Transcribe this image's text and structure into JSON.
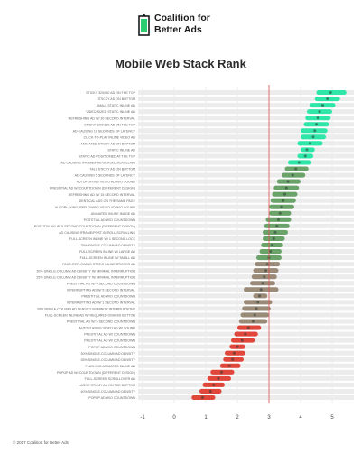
{
  "header": {
    "logo_line1": "Coalition for",
    "logo_line2": "Better Ads",
    "logo_mark": "coalition-logo-icon",
    "brand_color": "#2ecc71"
  },
  "footer": {
    "text": "© 2017 Coalition for Better Ads"
  },
  "chart_data": {
    "type": "dot-range",
    "title": "Mobile Web Stack Rank",
    "xlabel": "",
    "ylabel": "",
    "xlim": [
      -1,
      5.5
    ],
    "xticks": [
      "-1",
      "0",
      "1",
      "2",
      "3",
      "4",
      "5"
    ],
    "reference_line": 3,
    "colors": {
      "good": "#2ee6a8",
      "mid": "#6aa36a",
      "neutral": "#9a8a78",
      "bad": "#e0463a",
      "reference": "#e05050"
    },
    "rows": [
      {
        "label": "STICKY 320X50 AD ON THE TOP",
        "value": 4.95,
        "lo": 4.5,
        "hi": 5.45
      },
      {
        "label": "STICKY AD ON BOTTOM",
        "value": 4.85,
        "lo": 4.45,
        "hi": 5.25
      },
      {
        "label": "SMALL STATIC INLINE AD",
        "value": 4.7,
        "lo": 4.3,
        "hi": 5.1
      },
      {
        "label": "VIDEO-SIZED STATIC INLINE AD",
        "value": 4.6,
        "lo": 4.2,
        "hi": 5.0
      },
      {
        "label": "REFRESHING AD W/ 30 SECOND INTERVAL",
        "value": 4.55,
        "lo": 4.15,
        "hi": 4.95
      },
      {
        "label": "STICKY 320X100 AD ON THE TOP",
        "value": 4.5,
        "lo": 4.1,
        "hi": 4.9
      },
      {
        "label": "AD CAUSING 10 SECONDS OF LATENCY",
        "value": 4.45,
        "lo": 4.0,
        "hi": 4.85
      },
      {
        "label": "CLICK-TO-PLAY INLINE VIDEO AD",
        "value": 4.4,
        "lo": 4.0,
        "hi": 4.8
      },
      {
        "label": "ANIMATED STICKY AD ON BOTTOM",
        "value": 4.3,
        "lo": 3.9,
        "hi": 4.7
      },
      {
        "label": "STATIC INLINE AD",
        "value": 4.2,
        "lo": 4.0,
        "hi": 4.45
      },
      {
        "label": "STATIC AD POSITIONED AT THE TOP",
        "value": 4.15,
        "lo": 3.9,
        "hi": 4.4
      },
      {
        "label": "AD CAUSING IFRAME/PRE-SCROLL SCROLLING",
        "value": 3.95,
        "lo": 3.6,
        "hi": 4.35
      },
      {
        "label": "TALL STICKY AD ON BOTTOM",
        "value": 3.85,
        "lo": 3.5,
        "hi": 4.25
      },
      {
        "label": "AD CAUSING 5 SECONDS OF LATENCY",
        "value": 3.75,
        "lo": 3.4,
        "hi": 4.15
      },
      {
        "label": "AUTOPLAYING VIDEO AD W/O SOUND",
        "value": 3.6,
        "lo": 3.25,
        "hi": 4.0
      },
      {
        "label": "PRESTITIAL AD W/ COUNTDOWN (DIFFERENT DESIGN)",
        "value": 3.55,
        "lo": 3.15,
        "hi": 3.95
      },
      {
        "label": "REFRESHING AD W/ 15 SECOND INTERVAL",
        "value": 3.5,
        "lo": 3.1,
        "hi": 3.9
      },
      {
        "label": "IDENTICAL ADS ON THE SAME PAGE",
        "value": 3.45,
        "lo": 3.05,
        "hi": 3.85
      },
      {
        "label": "AUTOPLAYING, REFLOWING VIDEO AD W/O SOUND",
        "value": 3.4,
        "lo": 3.0,
        "hi": 3.8
      },
      {
        "label": "ANIMATED INLINE IMAGE AD",
        "value": 3.35,
        "lo": 3.0,
        "hi": 3.7
      },
      {
        "label": "POSTITIAL AD W/O COUNTDOWN",
        "value": 3.3,
        "lo": 2.9,
        "hi": 3.7
      },
      {
        "label": "POSTITIAL AD W/ 5 SECOND COUNTDOWN (DIFFERENT DESIGN)",
        "value": 3.25,
        "lo": 2.85,
        "hi": 3.65
      },
      {
        "label": "AD CAUSING IFRAME/POST-SCROLL SCROLLING",
        "value": 3.2,
        "lo": 2.8,
        "hi": 3.6
      },
      {
        "label": "FULL-SCREEN INLINE W/ 1 SECOND LOCK",
        "value": 3.15,
        "lo": 2.8,
        "hi": 3.5
      },
      {
        "label": "25% SINGLE-COLUMN AD DENSITY",
        "value": 3.1,
        "lo": 2.75,
        "hi": 3.45
      },
      {
        "label": "FULL-SCREEN INLINE W/ LARGE AD",
        "value": 3.05,
        "lo": 2.7,
        "hi": 3.4
      },
      {
        "label": "FULL-SCREEN INLINE W/ SMALL AD",
        "value": 3.0,
        "lo": 2.6,
        "hi": 3.4
      },
      {
        "label": "PAGE-REFLOWING STATIC INLINE STICKER AD",
        "value": 2.95,
        "lo": 2.55,
        "hi": 3.35
      },
      {
        "label": "30% SINGLE-COLUMN AD DENSITY W/ MINIMAL INTERRUPTION",
        "value": 2.9,
        "lo": 2.5,
        "hi": 3.3
      },
      {
        "label": "25% SINGLE-COLUMN AD DENSITY W/ MINIMAL INTERRUPTION",
        "value": 2.85,
        "lo": 2.45,
        "hi": 3.25
      },
      {
        "label": "PRESTITIAL AD W/ 5 SECOND COUNTDOWN",
        "value": 2.8,
        "lo": 2.4,
        "hi": 3.2
      },
      {
        "label": "INTERRUPTING AD W/ 5 SECOND INTERVAL",
        "value": 2.75,
        "lo": 2.2,
        "hi": 3.3
      },
      {
        "label": "PRESTITIAL AD W/O COUNTDOWN",
        "value": 2.7,
        "lo": 2.5,
        "hi": 2.95
      },
      {
        "label": "INTERRUPTING AD W/ 1 SECOND INTERVAL",
        "value": 2.65,
        "lo": 2.2,
        "hi": 3.1
      },
      {
        "label": "30% SINGLE-COLUMN AD DENSITY W/ MINOR INTERRUPTIONS",
        "value": 2.6,
        "lo": 2.15,
        "hi": 3.05
      },
      {
        "label": "FULL-SCREEN INLINE AD W/ REQUIRED DISMISS BUTTON",
        "value": 2.55,
        "lo": 2.1,
        "hi": 3.0
      },
      {
        "label": "PRESTITIAL AD W/ 5 SECOND COUNTDOWN",
        "value": 2.5,
        "lo": 2.05,
        "hi": 2.95
      },
      {
        "label": "AUTOPLAYING VIDEO AD W/ SOUND",
        "value": 2.35,
        "lo": 2.0,
        "hi": 2.75
      },
      {
        "label": "PRESTITIAL AD W/ COUNTDOWN",
        "value": 2.25,
        "lo": 1.9,
        "hi": 2.65
      },
      {
        "label": "PRESTITIAL AD W/ COUNTDOWN",
        "value": 2.15,
        "lo": 1.8,
        "hi": 2.55
      },
      {
        "label": "POPUP AD W/O COUNTDOWN",
        "value": 2.0,
        "lo": 1.75,
        "hi": 2.25
      },
      {
        "label": "30% SINGLE-COLUMN AD DENSITY",
        "value": 1.9,
        "lo": 1.6,
        "hi": 2.25
      },
      {
        "label": "35% SINGLE-COLUMN AD DENSITY",
        "value": 1.85,
        "lo": 1.55,
        "hi": 2.2
      },
      {
        "label": "FLASHING ANIMATED INLINE AD",
        "value": 1.75,
        "lo": 1.45,
        "hi": 2.1
      },
      {
        "label": "POPUP AD W/ COUNTDOWN (DIFFERENT DESIGN)",
        "value": 1.5,
        "lo": 1.15,
        "hi": 1.9
      },
      {
        "label": "FULL-SCREEN SCROLLOVER AD",
        "value": 1.4,
        "lo": 1.05,
        "hi": 1.8
      },
      {
        "label": "LARGE STICKY AD ON THE BOTTOM",
        "value": 1.25,
        "lo": 0.9,
        "hi": 1.6
      },
      {
        "label": "40% SINGLE-COLUMN AD DENSITY",
        "value": 1.15,
        "lo": 0.8,
        "hi": 1.5
      },
      {
        "label": "POPUP AD W/O COUNTDOWN",
        "value": 0.9,
        "lo": 0.55,
        "hi": 1.3
      }
    ]
  }
}
